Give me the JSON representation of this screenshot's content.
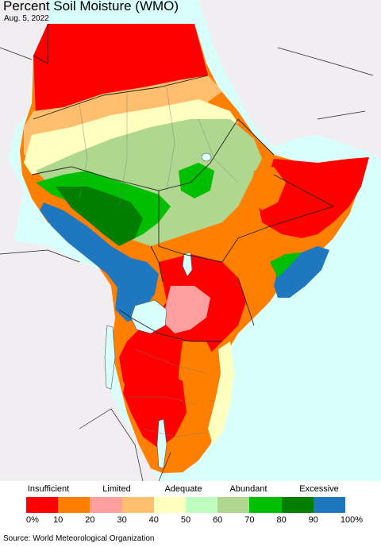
{
  "title": "Percent Soil Moisture (WMO)",
  "date": "Aug. 5, 2022",
  "legend": {
    "categories": [
      "Insufficient",
      "Limited",
      "Adequate",
      "Abundant",
      "Excessive"
    ],
    "ticks": [
      "0%",
      "10",
      "20",
      "30",
      "40",
      "50",
      "60",
      "70",
      "80",
      "90",
      "100%"
    ],
    "colors": [
      "#ff0000",
      "#ff7f00",
      "#ff9f9f",
      "#ffbf6f",
      "#ffffbf",
      "#bfffbf",
      "#afd78f",
      "#00bf00",
      "#007f00",
      "#1f77bf"
    ]
  },
  "source": "Source: World Meteorological Organization",
  "map_colors": {
    "water": "#d9fffd",
    "land_outside": "#f0eef1",
    "insufficient": "#ff0000",
    "limited_high": "#ff7f00",
    "limited_pink": "#ff9f9f",
    "limited_tan": "#ffbf6f",
    "adequate": "#ffffbf",
    "adequate_green": "#bfffbf",
    "abundant": "#afd78f",
    "excessive_green": "#00bf00",
    "excessive_dark": "#007f00",
    "excessive_blue": "#1f77bf",
    "lake": "#d9fffd"
  }
}
